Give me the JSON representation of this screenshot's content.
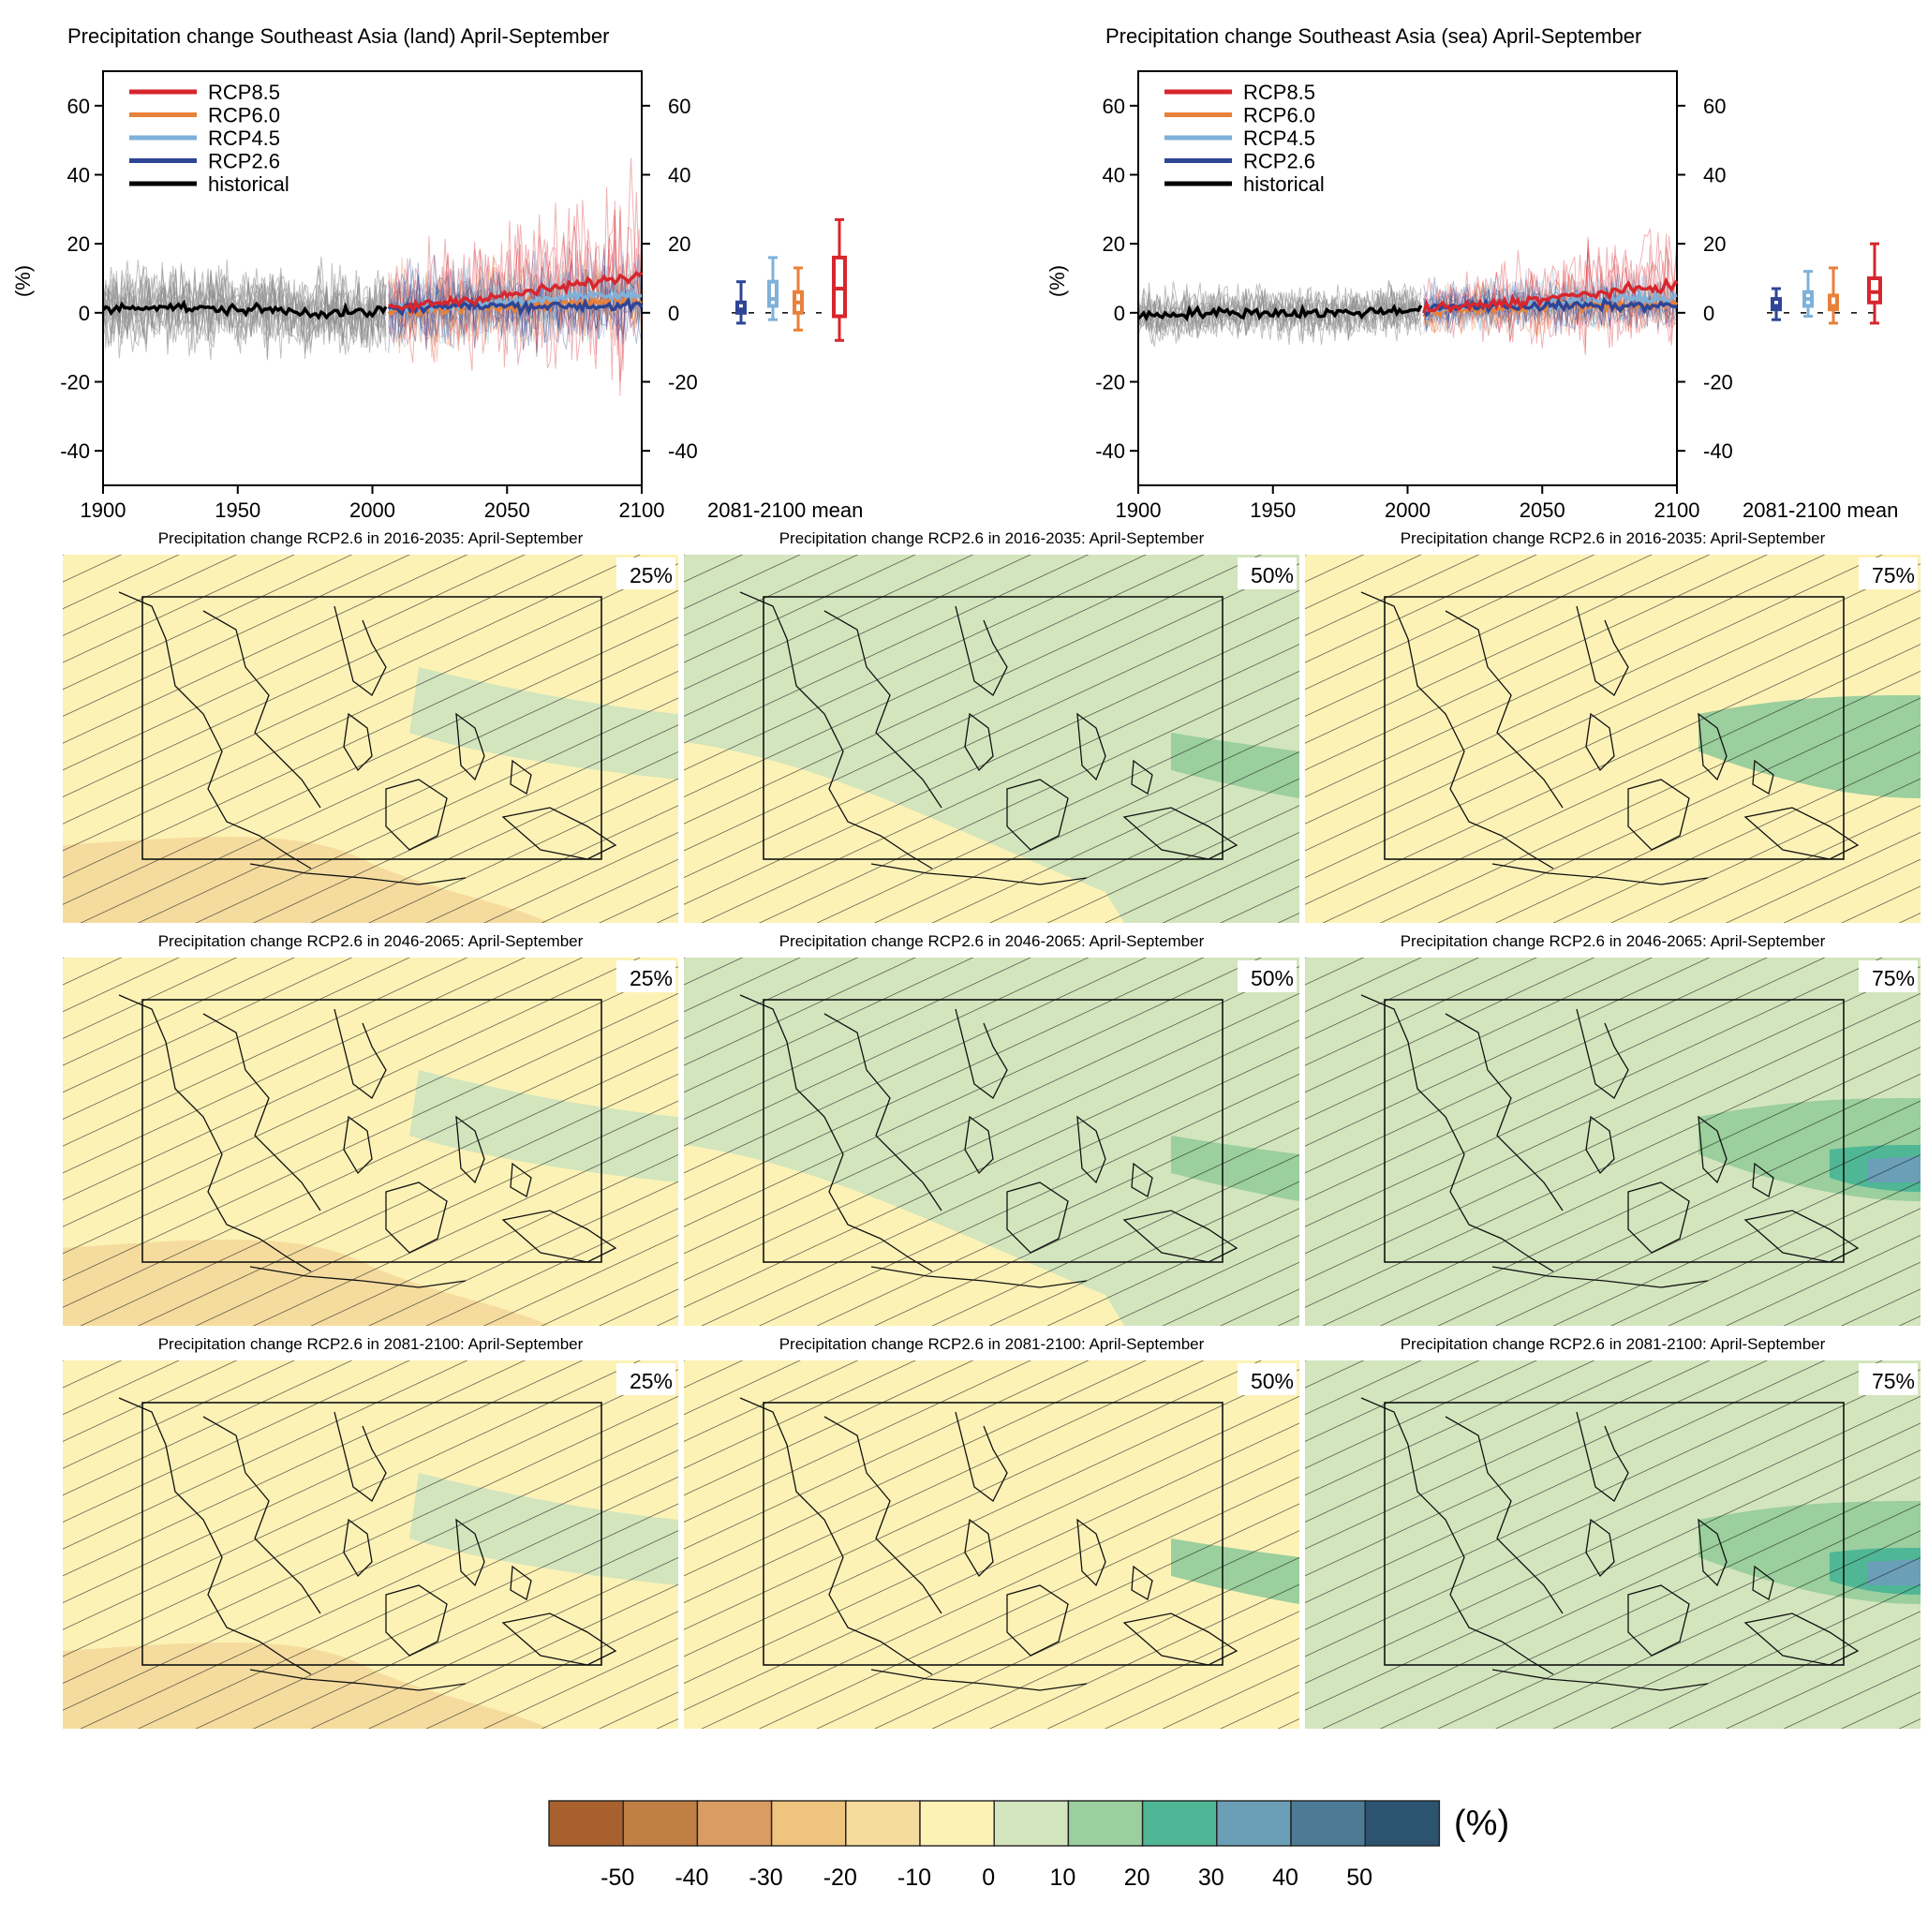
{
  "colors": {
    "rcp85": "#d7262d",
    "rcp60": "#e8813a",
    "rcp45": "#7fb1d9",
    "rcp26": "#2f4596",
    "historical": "#000000",
    "ensemble_hist": "#8c8c8c",
    "map_palette": [
      "#a8612e",
      "#c27f45",
      "#d99c62",
      "#efc47e",
      "#f5dc9e",
      "#fdf2b6",
      "#d3e5bd",
      "#9bcf9d",
      "#4fb795",
      "#6b9fb8",
      "#4d7b95",
      "#2c5470"
    ]
  },
  "timeseries_panels": [
    {
      "title": "Precipitation change Southeast Asia (land) April-September",
      "ylabel": "(%)",
      "boxplot_label": "2081-2100 mean",
      "legend": [
        "RCP8.5",
        "RCP6.0",
        "RCP4.5",
        "RCP2.6",
        "historical"
      ]
    },
    {
      "title": "Precipitation change Southeast Asia (sea) April-September",
      "ylabel": "(%)",
      "boxplot_label": "2081-2100 mean",
      "legend": [
        "RCP8.5",
        "RCP6.0",
        "RCP4.5",
        "RCP2.6",
        "historical"
      ]
    }
  ],
  "map_panels": [
    {
      "title": "Precipitation change RCP2.6 in 2016-2035: April-September",
      "percentile": "25%"
    },
    {
      "title": "Precipitation change RCP2.6 in 2016-2035: April-September",
      "percentile": "50%"
    },
    {
      "title": "Precipitation change RCP2.6 in 2016-2035: April-September",
      "percentile": "75%"
    },
    {
      "title": "Precipitation change RCP2.6 in 2046-2065: April-September",
      "percentile": "25%"
    },
    {
      "title": "Precipitation change RCP2.6 in 2046-2065: April-September",
      "percentile": "50%"
    },
    {
      "title": "Precipitation change RCP2.6 in 2046-2065: April-September",
      "percentile": "75%"
    },
    {
      "title": "Precipitation change RCP2.6 in 2081-2100: April-September",
      "percentile": "25%"
    },
    {
      "title": "Precipitation change RCP2.6 in 2081-2100: April-September",
      "percentile": "50%"
    },
    {
      "title": "Precipitation change RCP2.6 in 2081-2100: April-September",
      "percentile": "75%"
    }
  ],
  "colorbar": {
    "ticks": [
      "-50",
      "-40",
      "-30",
      "-20",
      "-10",
      "0",
      "10",
      "20",
      "30",
      "40",
      "50"
    ],
    "unit": "(%)"
  },
  "chart_data": [
    {
      "type": "line",
      "title": "Precipitation change Southeast Asia (land) April-September",
      "ylabel": "(%)",
      "xlim": [
        1900,
        2100
      ],
      "ylim": [
        -50,
        70
      ],
      "x_ticks": [
        "1900",
        "1950",
        "2000",
        "2050",
        "2100"
      ],
      "y_ticks": [
        "-40",
        "-20",
        "0",
        "20",
        "40",
        "60"
      ],
      "grid": false,
      "legend_position": "top-left",
      "series": [
        {
          "name": "historical",
          "x": [
            1900,
            1920,
            1940,
            1960,
            1980,
            2000,
            2005
          ],
          "values": [
            1,
            2,
            1,
            1,
            0,
            0,
            1
          ]
        },
        {
          "name": "RCP2.6",
          "x": [
            2006,
            2025,
            2050,
            2075,
            2100
          ],
          "values": [
            1,
            2,
            2,
            2,
            2
          ]
        },
        {
          "name": "RCP4.5",
          "x": [
            2006,
            2025,
            2050,
            2075,
            2100
          ],
          "values": [
            1,
            2,
            3,
            5,
            5
          ]
        },
        {
          "name": "RCP6.0",
          "x": [
            2006,
            2025,
            2050,
            2075,
            2100
          ],
          "values": [
            0,
            1,
            2,
            3,
            4
          ]
        },
        {
          "name": "RCP8.5",
          "x": [
            2006,
            2025,
            2050,
            2075,
            2100
          ],
          "values": [
            1,
            3,
            5,
            8,
            11
          ]
        }
      ],
      "boxplots_2081_2100": [
        {
          "name": "RCP2.6",
          "min": -3,
          "q1": 0,
          "median": 1,
          "q3": 3,
          "max": 9
        },
        {
          "name": "RCP4.5",
          "min": -2,
          "q1": 2,
          "median": 4,
          "q3": 9,
          "max": 16
        },
        {
          "name": "RCP6.0",
          "min": -5,
          "q1": 0,
          "median": 3,
          "q3": 6,
          "max": 13
        },
        {
          "name": "RCP8.5",
          "min": -8,
          "q1": -1,
          "median": 7,
          "q3": 16,
          "max": 27
        }
      ]
    },
    {
      "type": "line",
      "title": "Precipitation change Southeast Asia (sea) April-September",
      "ylabel": "(%)",
      "xlim": [
        1900,
        2100
      ],
      "ylim": [
        -50,
        70
      ],
      "x_ticks": [
        "1900",
        "1950",
        "2000",
        "2050",
        "2100"
      ],
      "y_ticks": [
        "-40",
        "-20",
        "0",
        "20",
        "40",
        "60"
      ],
      "grid": false,
      "legend_position": "top-left",
      "series": [
        {
          "name": "historical",
          "x": [
            1900,
            1920,
            1940,
            1960,
            1980,
            2000,
            2005
          ],
          "values": [
            -1,
            0,
            0,
            0,
            0,
            1,
            1
          ]
        },
        {
          "name": "RCP2.6",
          "x": [
            2006,
            2025,
            2050,
            2075,
            2100
          ],
          "values": [
            1,
            2,
            2,
            2,
            2
          ]
        },
        {
          "name": "RCP4.5",
          "x": [
            2006,
            2025,
            2050,
            2075,
            2100
          ],
          "values": [
            1,
            2,
            3,
            4,
            4
          ]
        },
        {
          "name": "RCP6.0",
          "x": [
            2006,
            2025,
            2050,
            2075,
            2100
          ],
          "values": [
            0,
            1,
            2,
            2,
            3
          ]
        },
        {
          "name": "RCP8.5",
          "x": [
            2006,
            2025,
            2050,
            2075,
            2100
          ],
          "values": [
            1,
            2,
            4,
            6,
            8
          ]
        }
      ],
      "boxplots_2081_2100": [
        {
          "name": "RCP2.6",
          "min": -2,
          "q1": 1,
          "median": 2,
          "q3": 4,
          "max": 7
        },
        {
          "name": "RCP4.5",
          "min": -1,
          "q1": 2,
          "median": 4,
          "q3": 6,
          "max": 12
        },
        {
          "name": "RCP6.0",
          "min": -3,
          "q1": 1,
          "median": 2,
          "q3": 5,
          "max": 13
        },
        {
          "name": "RCP8.5",
          "min": -3,
          "q1": 3,
          "median": 6,
          "q3": 10,
          "max": 20
        }
      ]
    }
  ]
}
